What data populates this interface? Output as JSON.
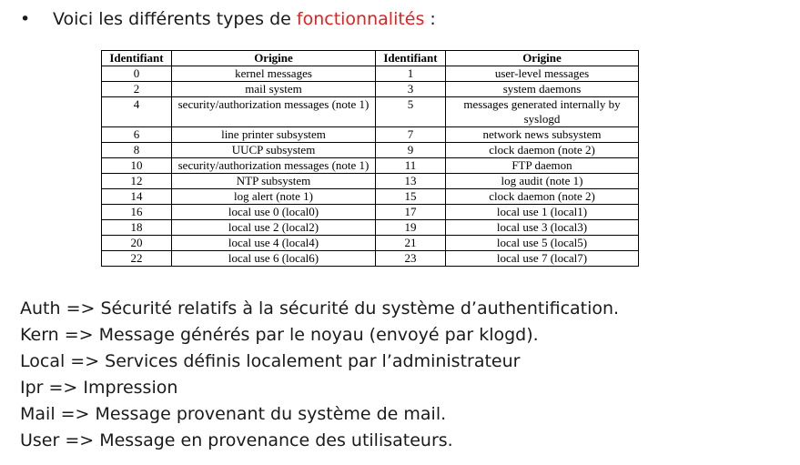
{
  "heading": {
    "bullet": "•",
    "prefix": "Voici les différents types de ",
    "highlight": "fonctionnalités",
    "suffix": " :",
    "highlight_color": "#e31f1f"
  },
  "table": {
    "headers": [
      "Identifiant",
      "Origine",
      "Identifiant",
      "Origine"
    ],
    "rows": [
      [
        "0",
        "kernel messages",
        "1",
        "user-level messages"
      ],
      [
        "2",
        "mail system",
        "3",
        "system daemons"
      ],
      [
        "4",
        "security/authorization messages (note 1)",
        "5",
        "messages generated internally by syslogd"
      ],
      [
        "6",
        "line printer subsystem",
        "7",
        "network news subsystem"
      ],
      [
        "8",
        "UUCP subsystem",
        "9",
        "clock daemon (note 2)"
      ],
      [
        "10",
        "security/authorization messages (note 1)",
        "11",
        "FTP daemon"
      ],
      [
        "12",
        "NTP subsystem",
        "13",
        "log audit (note 1)"
      ],
      [
        "14",
        "log alert (note 1)",
        "15",
        "clock daemon (note 2)"
      ],
      [
        "16",
        "local use 0 (local0)",
        "17",
        "local use 1 (local1)"
      ],
      [
        "18",
        "local use 2 (local2)",
        "19",
        "local use 3 (local3)"
      ],
      [
        "20",
        "local use 4 (local4)",
        "21",
        "local use 5 (local5)"
      ],
      [
        "22",
        "local use 6 (local6)",
        "23",
        "local use 7 (local7)"
      ]
    ]
  },
  "definitions": [
    "Auth => Sécurité relatifs à la sécurité du système d’authentification.",
    "Kern => Message générés par le noyau (envoyé par klogd).",
    "Local => Services définis localement par l’administrateur",
    "Ipr => Impression",
    "Mail => Message provenant du système de mail.",
    "User => Message en provenance des utilisateurs."
  ]
}
